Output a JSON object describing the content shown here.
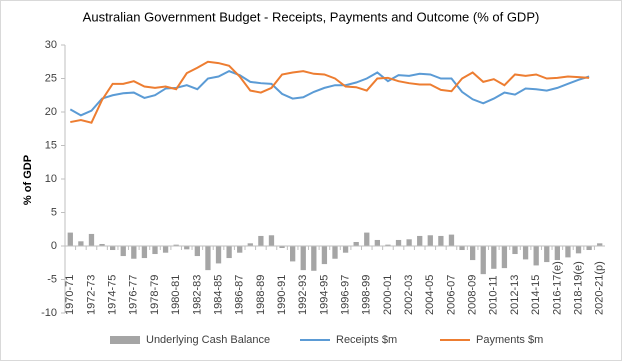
{
  "chart_data": {
    "type": "combo",
    "title": "Australian Government Budget - Receipts, Payments and Outcome (% of GDP)",
    "y_label": "% of GDP",
    "categories": [
      "1970-71",
      null,
      "1972-73",
      null,
      "1974-75",
      null,
      "1976-77",
      null,
      "1978-79",
      null,
      "1980-81",
      null,
      "1982-83",
      null,
      "1984-85",
      null,
      "1986-87",
      null,
      "1988-89",
      null,
      "1990-91",
      null,
      "1992-93",
      null,
      "1994-95",
      null,
      "1996-97",
      null,
      "1998-99",
      null,
      "2000-01",
      null,
      "2002-03",
      null,
      "2004-05",
      null,
      "2006-07",
      null,
      "2008-09",
      null,
      "2010-11",
      null,
      "2012-13",
      null,
      "2014-15",
      null,
      "2016-17(e)",
      null,
      "2018-19(e)",
      null,
      "2020-21(p)"
    ],
    "series": [
      {
        "name": "Underlying Cash Balance",
        "type": "bar",
        "color": "#a5a5a5",
        "values": [
          2.0,
          0.7,
          1.8,
          0.3,
          -0.6,
          -1.5,
          -1.9,
          -1.8,
          -1.2,
          -1.0,
          0.2,
          -0.5,
          -1.5,
          -3.6,
          -2.6,
          -1.8,
          -1.0,
          0.4,
          1.5,
          1.6,
          -0.3,
          -2.3,
          -3.6,
          -3.7,
          -2.7,
          -1.9,
          -1.0,
          0.6,
          2.0,
          0.9,
          0.2,
          0.9,
          1.0,
          1.5,
          1.6,
          1.5,
          1.7,
          -0.6,
          -2.1,
          -4.2,
          -3.4,
          -3.3,
          -1.2,
          -2.0,
          -2.9,
          -2.4,
          -2.1,
          -1.7,
          -1.1,
          -0.6,
          0.4
        ]
      },
      {
        "name": "Receipts $m",
        "type": "line",
        "color": "#5b9bd5",
        "values": [
          20.4,
          19.5,
          20.2,
          22.0,
          22.5,
          22.8,
          22.9,
          22.1,
          22.5,
          23.5,
          23.6,
          24.0,
          23.4,
          25.0,
          25.3,
          26.1,
          25.5,
          24.5,
          24.3,
          24.2,
          22.7,
          22.0,
          22.2,
          23.0,
          23.6,
          24.0,
          24.0,
          24.4,
          25.0,
          25.9,
          24.6,
          25.5,
          25.4,
          25.7,
          25.6,
          25.0,
          25.0,
          23.0,
          21.9,
          21.3,
          22.0,
          22.9,
          22.6,
          23.5,
          23.4,
          23.2,
          23.6,
          24.2,
          24.8,
          25.3,
          null
        ]
      },
      {
        "name": "Payments $m",
        "type": "line",
        "color": "#ed7d31",
        "values": [
          18.5,
          18.8,
          18.4,
          21.8,
          24.2,
          24.2,
          24.6,
          23.8,
          23.6,
          23.8,
          23.4,
          25.8,
          26.6,
          27.5,
          27.3,
          26.9,
          25.3,
          23.2,
          22.9,
          23.6,
          25.6,
          25.9,
          26.1,
          25.7,
          25.6,
          25.0,
          23.8,
          23.7,
          23.2,
          25.0,
          25.1,
          24.6,
          24.3,
          24.1,
          24.1,
          23.3,
          23.1,
          25.0,
          25.9,
          24.5,
          24.9,
          24.0,
          25.6,
          25.4,
          25.6,
          25.0,
          25.1,
          25.3,
          25.2,
          25.1,
          null
        ]
      }
    ],
    "ylim": [
      -10,
      30
    ],
    "yticks": [
      -10,
      -5,
      0,
      5,
      10,
      15,
      20,
      25,
      30
    ],
    "grid": false,
    "legend": "bottom"
  }
}
